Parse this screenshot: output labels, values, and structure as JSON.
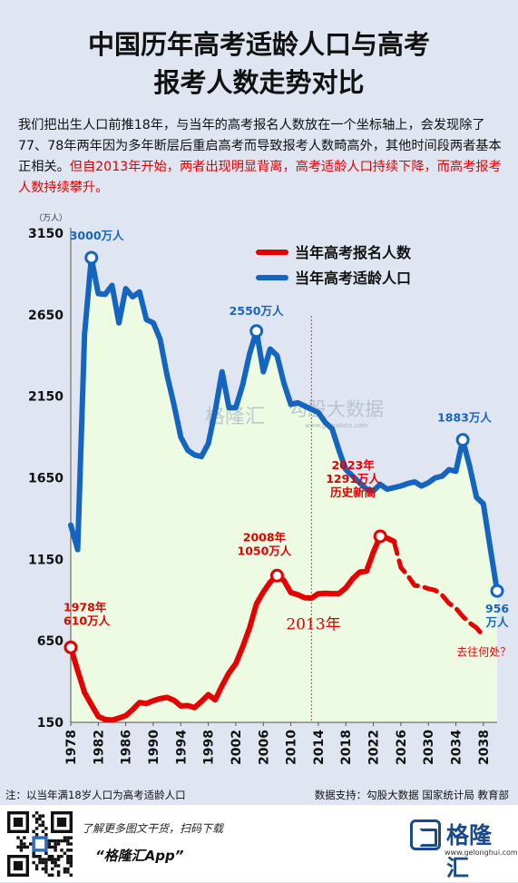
{
  "title": {
    "line1": "中国历年高考适龄人口与高考",
    "line2": "报考人数走势对比"
  },
  "description": {
    "normal": "我们把出生人口前推18年，与当年的高考报名人数放在一个坐标轴上，会发现除了77、78年两年因为多年断层后重启高考而导致报考人数畸高外，其他时间段两者基本正相关。",
    "highlight": "但自2013年开始，两者出现明显背离，高考适龄人口持续下降，而高考报考人数持续攀升。"
  },
  "chart_data": {
    "type": "line",
    "yunit": "（万人）",
    "ylim": [
      150,
      3150
    ],
    "yticks": [
      150,
      650,
      1150,
      1650,
      2150,
      2650,
      3150
    ],
    "xlim": [
      1978,
      2040
    ],
    "xticks": [
      1978,
      1982,
      1986,
      1990,
      1994,
      1998,
      2002,
      2006,
      2010,
      2014,
      2018,
      2022,
      2026,
      2030,
      2034,
      2038
    ],
    "colors": {
      "red": "#e60000",
      "blue": "#1565c0",
      "fill": "#ecfbe1",
      "vline": "#e03030"
    },
    "legend": [
      "当年高考报名人数",
      "当年高考适龄人口"
    ],
    "series": [
      {
        "name": "当年高考报名人数",
        "solid": [
          [
            1978,
            610
          ],
          [
            1979,
            468
          ],
          [
            1980,
            333
          ],
          [
            1981,
            259
          ],
          [
            1982,
            187
          ],
          [
            1983,
            167
          ],
          [
            1984,
            164
          ],
          [
            1985,
            176
          ],
          [
            1986,
            191
          ],
          [
            1987,
            228
          ],
          [
            1988,
            272
          ],
          [
            1989,
            266
          ],
          [
            1990,
            283
          ],
          [
            1991,
            296
          ],
          [
            1992,
            303
          ],
          [
            1993,
            286
          ],
          [
            1994,
            251
          ],
          [
            1995,
            253
          ],
          [
            1996,
            241
          ],
          [
            1997,
            278
          ],
          [
            1998,
            320
          ],
          [
            1999,
            288
          ],
          [
            2000,
            375
          ],
          [
            2001,
            454
          ],
          [
            2002,
            510
          ],
          [
            2003,
            613
          ],
          [
            2004,
            729
          ],
          [
            2005,
            877
          ],
          [
            2006,
            950
          ],
          [
            2007,
            1010
          ],
          [
            2008,
            1050
          ],
          [
            2009,
            1020
          ],
          [
            2010,
            946
          ],
          [
            2011,
            933
          ],
          [
            2012,
            915
          ],
          [
            2013,
            912
          ],
          [
            2014,
            939
          ],
          [
            2015,
            942
          ],
          [
            2016,
            940
          ],
          [
            2017,
            940
          ],
          [
            2018,
            975
          ],
          [
            2019,
            1031
          ],
          [
            2020,
            1071
          ],
          [
            2021,
            1078
          ],
          [
            2022,
            1193
          ],
          [
            2023,
            1291
          ],
          [
            2024,
            1280
          ],
          [
            2025,
            1260
          ]
        ],
        "dashed": [
          [
            2025,
            1260
          ],
          [
            2026,
            1100
          ],
          [
            2027,
            1050
          ],
          [
            2028,
            990
          ],
          [
            2029,
            985
          ],
          [
            2030,
            970
          ],
          [
            2031,
            960
          ],
          [
            2032,
            930
          ],
          [
            2033,
            880
          ],
          [
            2034,
            850
          ],
          [
            2035,
            800
          ],
          [
            2036,
            760
          ],
          [
            2037,
            730
          ],
          [
            2038,
            680
          ]
        ]
      },
      {
        "name": "当年高考适龄人口",
        "points": [
          [
            1978,
            1360
          ],
          [
            1979,
            1210
          ],
          [
            1980,
            2530
          ],
          [
            1981,
            3000
          ],
          [
            1982,
            2780
          ],
          [
            1983,
            2775
          ],
          [
            1984,
            2830
          ],
          [
            1985,
            2600
          ],
          [
            1986,
            2810
          ],
          [
            1987,
            2760
          ],
          [
            1988,
            2790
          ],
          [
            1989,
            2620
          ],
          [
            1990,
            2600
          ],
          [
            1991,
            2500
          ],
          [
            1992,
            2280
          ],
          [
            1993,
            2100
          ],
          [
            1994,
            1900
          ],
          [
            1995,
            1820
          ],
          [
            1996,
            1790
          ],
          [
            1997,
            1780
          ],
          [
            1998,
            1860
          ],
          [
            1999,
            2060
          ],
          [
            2000,
            2300
          ],
          [
            2001,
            2080
          ],
          [
            2002,
            2080
          ],
          [
            2003,
            2220
          ],
          [
            2004,
            2410
          ],
          [
            2005,
            2550
          ],
          [
            2006,
            2300
          ],
          [
            2007,
            2440
          ],
          [
            2008,
            2400
          ],
          [
            2009,
            2230
          ],
          [
            2010,
            2100
          ],
          [
            2011,
            2110
          ],
          [
            2012,
            2090
          ],
          [
            2013,
            2070
          ],
          [
            2014,
            2050
          ],
          [
            2015,
            1990
          ],
          [
            2016,
            1950
          ],
          [
            2017,
            1820
          ],
          [
            2018,
            1700
          ],
          [
            2019,
            1660
          ],
          [
            2020,
            1620
          ],
          [
            2021,
            1580
          ],
          [
            2022,
            1570
          ],
          [
            2023,
            1610
          ],
          [
            2024,
            1580
          ],
          [
            2025,
            1590
          ],
          [
            2026,
            1600
          ],
          [
            2027,
            1615
          ],
          [
            2028,
            1625
          ],
          [
            2029,
            1600
          ],
          [
            2030,
            1620
          ],
          [
            2031,
            1650
          ],
          [
            2032,
            1660
          ],
          [
            2033,
            1700
          ],
          [
            2034,
            1690
          ],
          [
            2035,
            1883
          ],
          [
            2036,
            1720
          ],
          [
            2037,
            1530
          ],
          [
            2038,
            1490
          ],
          [
            2039,
            1220
          ],
          [
            2040,
            956
          ]
        ]
      }
    ],
    "annotations": [
      {
        "year": 1981,
        "value": 3000,
        "series": "blue",
        "label": [
          "3000万人"
        ]
      },
      {
        "year": 2005,
        "value": 2550,
        "series": "blue",
        "label": [
          "2550万人"
        ]
      },
      {
        "year": 2035,
        "value": 1883,
        "series": "blue",
        "label": [
          "1883万人"
        ]
      },
      {
        "year": 2040,
        "value": 956,
        "series": "blue",
        "label": [
          "956",
          "万人"
        ]
      },
      {
        "year": 1978,
        "value": 610,
        "series": "red",
        "label": [
          "1978年",
          "610万人"
        ]
      },
      {
        "year": 2008,
        "value": 1050,
        "series": "red",
        "label": [
          "2008年",
          "1050万人"
        ]
      },
      {
        "year": 2023,
        "value": 1291,
        "series": "red",
        "label": [
          "2023年",
          "1291万人",
          "历史新高"
        ]
      }
    ],
    "vline": {
      "year": 2013,
      "label": "2013年"
    },
    "dashed_label": "去往何处？"
  },
  "watermarks": {
    "left": "格隆汇",
    "right": "勾股大数据",
    "right_url": "www.gogudata.com"
  },
  "footer": {
    "note": "注：以当年满18岁人口为高考适龄人口",
    "source": "数据支持：勾股大数据  国家统计局 教育部",
    "promo": "了解更多图文干货，扫码下载",
    "app": "“格隆汇App”",
    "logo_name": "格隆汇",
    "logo_url": "www.gelonghui.com"
  }
}
